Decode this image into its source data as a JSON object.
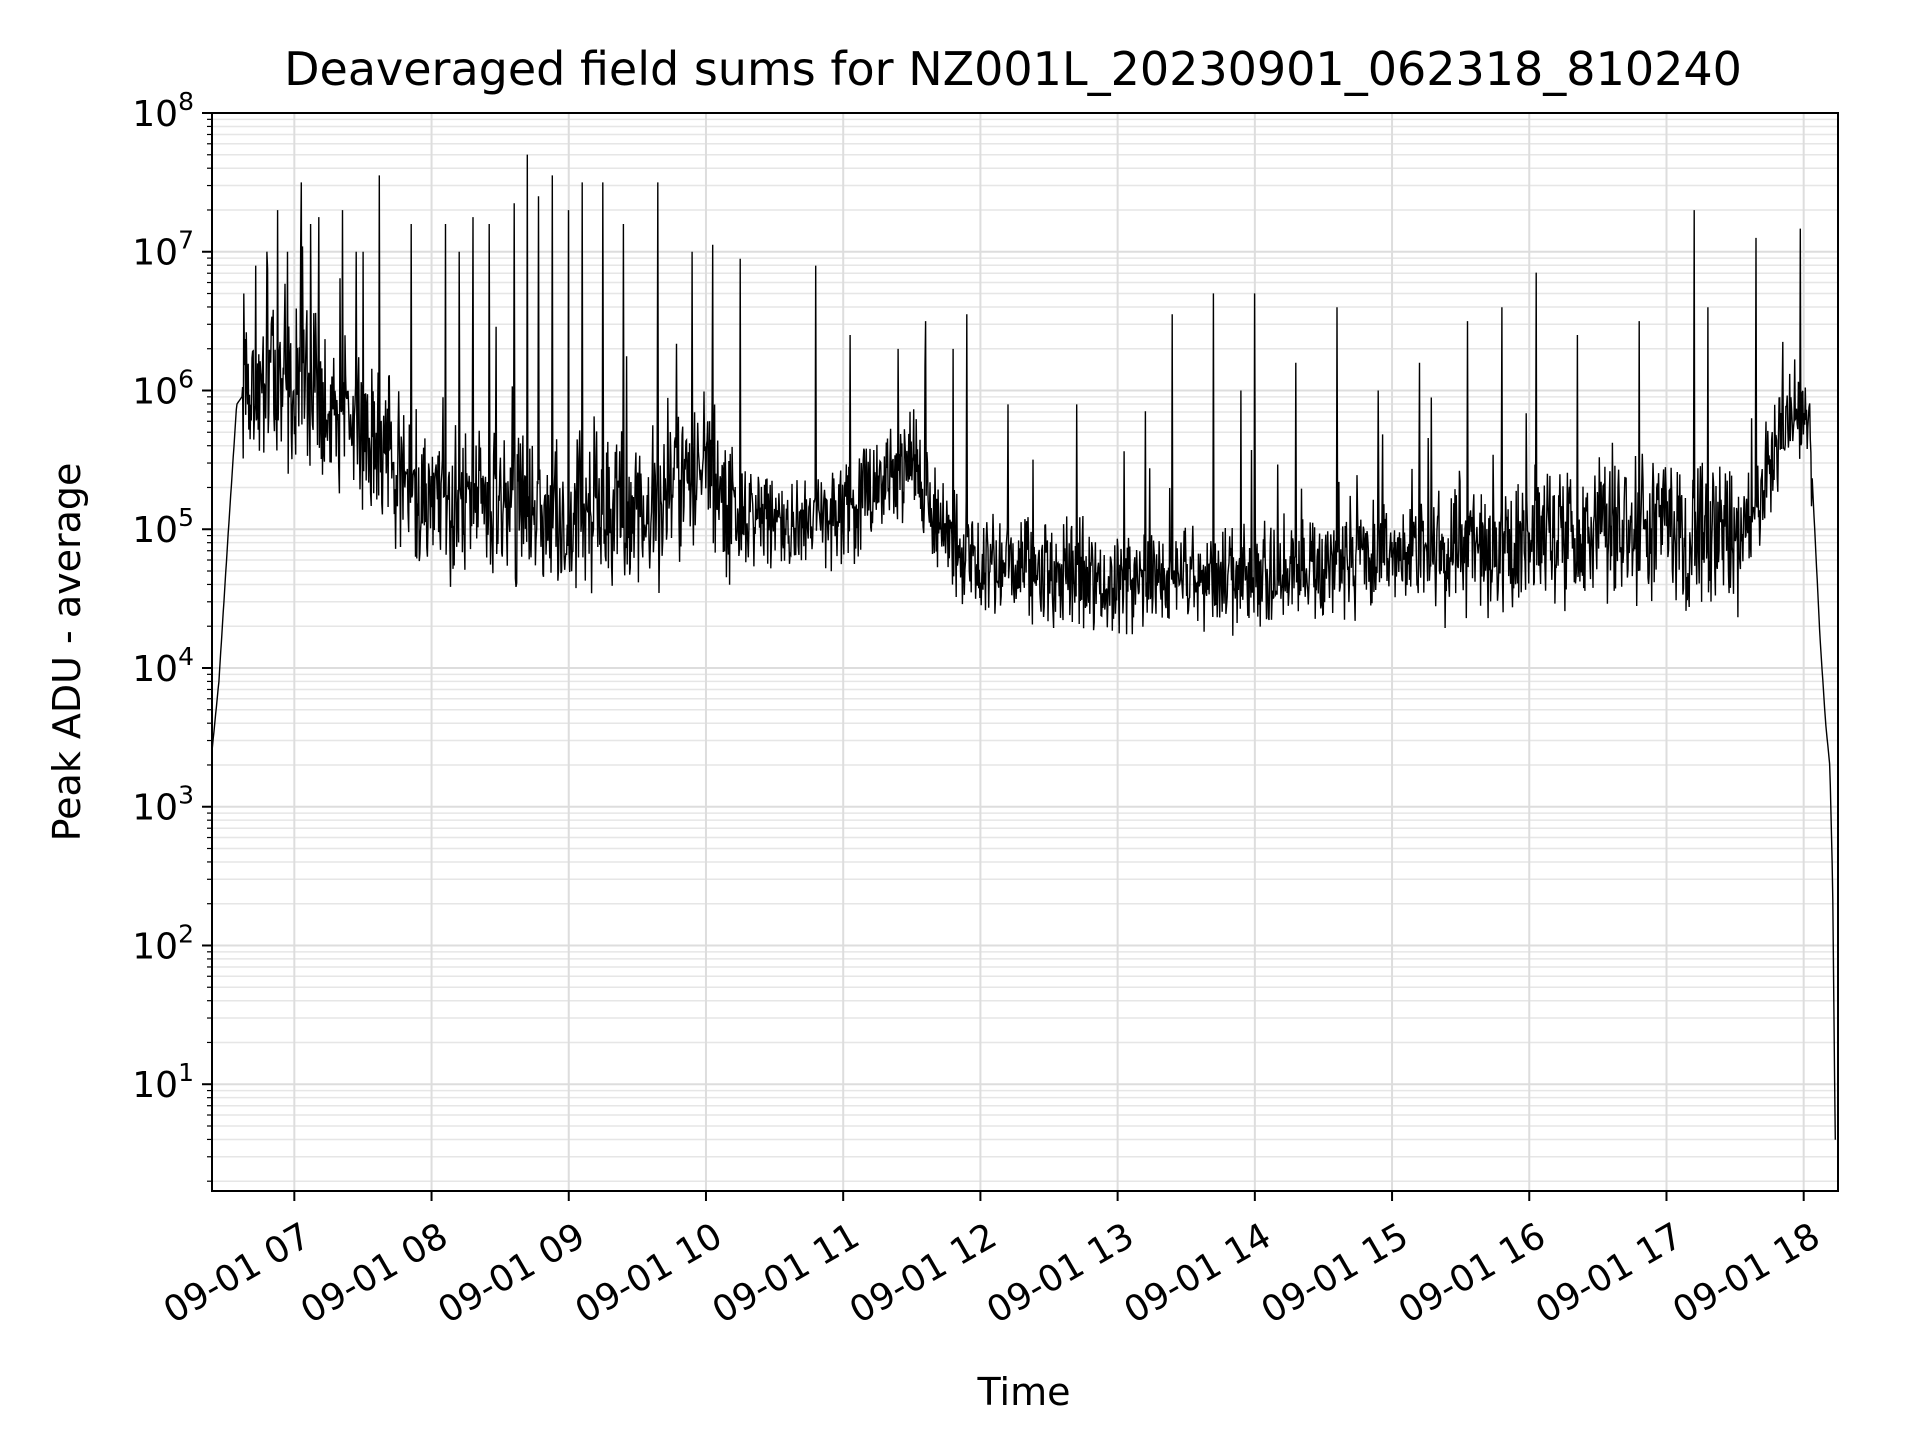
{
  "chart_data": {
    "type": "line",
    "title": "Deaveraged field sums for NZ001L_20230901_062318_810240",
    "xlabel": "Time",
    "ylabel": "Peak ADU - average",
    "yscale": "log",
    "ylim": [
      1.7,
      100000000
    ],
    "xlim_hours": [
      6.4,
      18.25
    ],
    "grid": true,
    "x_ticks": [
      {
        "t": 7,
        "label": "09-01 07"
      },
      {
        "t": 8,
        "label": "09-01 08"
      },
      {
        "t": 9,
        "label": "09-01 09"
      },
      {
        "t": 10,
        "label": "09-01 10"
      },
      {
        "t": 11,
        "label": "09-01 11"
      },
      {
        "t": 12,
        "label": "09-01 12"
      },
      {
        "t": 13,
        "label": "09-01 13"
      },
      {
        "t": 14,
        "label": "09-01 14"
      },
      {
        "t": 15,
        "label": "09-01 15"
      },
      {
        "t": 16,
        "label": "09-01 16"
      },
      {
        "t": 17,
        "label": "09-01 17"
      },
      {
        "t": 18,
        "label": "09-01 18"
      }
    ],
    "y_ticks": [
      {
        "exp": 1,
        "base": "10",
        "sup": "1"
      },
      {
        "exp": 2,
        "base": "10",
        "sup": "2"
      },
      {
        "exp": 3,
        "base": "10",
        "sup": "3"
      },
      {
        "exp": 4,
        "base": "10",
        "sup": "4"
      },
      {
        "exp": 5,
        "base": "10",
        "sup": "5"
      },
      {
        "exp": 6,
        "base": "10",
        "sup": "6"
      },
      {
        "exp": 7,
        "base": "10",
        "sup": "7"
      },
      {
        "exp": 8,
        "base": "10",
        "sup": "8"
      }
    ],
    "series": [
      {
        "name": "Peak ADU - average",
        "color": "#000000",
        "baseline": [
          [
            6.4,
            3.4
          ],
          [
            6.45,
            3.9
          ],
          [
            6.52,
            5.0
          ],
          [
            6.58,
            5.9
          ],
          [
            6.65,
            6.0
          ],
          [
            7.0,
            6.0
          ],
          [
            7.3,
            5.9
          ],
          [
            7.6,
            5.6
          ],
          [
            8.0,
            5.2
          ],
          [
            8.5,
            5.2
          ],
          [
            9.0,
            5.1
          ],
          [
            9.4,
            5.1
          ],
          [
            9.7,
            5.2
          ],
          [
            10.0,
            5.5
          ],
          [
            10.15,
            5.1
          ],
          [
            10.5,
            5.0
          ],
          [
            11.0,
            5.1
          ],
          [
            11.5,
            5.5
          ],
          [
            11.7,
            5.0
          ],
          [
            12.0,
            4.75
          ],
          [
            13.0,
            4.65
          ],
          [
            14.0,
            4.65
          ],
          [
            15.0,
            4.8
          ],
          [
            16.0,
            4.95
          ],
          [
            17.0,
            5.0
          ],
          [
            17.55,
            4.9
          ],
          [
            17.8,
            5.5
          ],
          [
            17.9,
            5.9
          ],
          [
            18.0,
            5.9
          ],
          [
            18.06,
            5.4
          ],
          [
            18.12,
            4.2
          ],
          [
            18.16,
            3.6
          ],
          [
            18.19,
            3.3
          ],
          [
            18.21,
            2.5
          ],
          [
            18.23,
            0.6
          ]
        ],
        "spikes": [
          [
            6.72,
            6.9
          ],
          [
            6.8,
            7.0
          ],
          [
            6.88,
            7.3
          ],
          [
            6.95,
            7.0
          ],
          [
            7.05,
            7.5
          ],
          [
            7.12,
            7.2
          ],
          [
            7.18,
            7.25
          ],
          [
            7.35,
            7.3
          ],
          [
            7.45,
            7.0
          ],
          [
            7.5,
            7.0
          ],
          [
            7.62,
            7.55
          ],
          [
            7.85,
            7.2
          ],
          [
            8.1,
            7.2
          ],
          [
            8.2,
            7.0
          ],
          [
            8.3,
            7.25
          ],
          [
            8.42,
            7.2
          ],
          [
            8.6,
            7.35
          ],
          [
            8.7,
            7.7
          ],
          [
            8.78,
            7.4
          ],
          [
            8.88,
            7.55
          ],
          [
            9.0,
            7.3
          ],
          [
            9.1,
            7.5
          ],
          [
            9.25,
            7.5
          ],
          [
            9.4,
            7.2
          ],
          [
            9.65,
            7.5
          ],
          [
            9.9,
            7.0
          ],
          [
            10.05,
            7.05
          ],
          [
            10.25,
            6.95
          ],
          [
            10.8,
            6.9
          ],
          [
            11.05,
            6.4
          ],
          [
            11.4,
            6.3
          ],
          [
            11.6,
            6.5
          ],
          [
            11.8,
            6.3
          ],
          [
            11.9,
            6.55
          ],
          [
            12.2,
            5.9
          ],
          [
            12.7,
            5.9
          ],
          [
            13.2,
            5.85
          ],
          [
            13.4,
            6.55
          ],
          [
            13.7,
            6.7
          ],
          [
            13.9,
            6.0
          ],
          [
            14.0,
            6.7
          ],
          [
            14.3,
            6.2
          ],
          [
            14.6,
            6.6
          ],
          [
            14.9,
            6.0
          ],
          [
            15.2,
            6.2
          ],
          [
            15.55,
            6.5
          ],
          [
            15.8,
            6.6
          ],
          [
            16.05,
            6.85
          ],
          [
            16.35,
            6.4
          ],
          [
            16.8,
            6.5
          ],
          [
            17.2,
            7.3
          ],
          [
            17.3,
            6.6
          ],
          [
            17.65,
            7.1
          ],
          [
            17.85,
            6.35
          ]
        ]
      }
    ]
  }
}
